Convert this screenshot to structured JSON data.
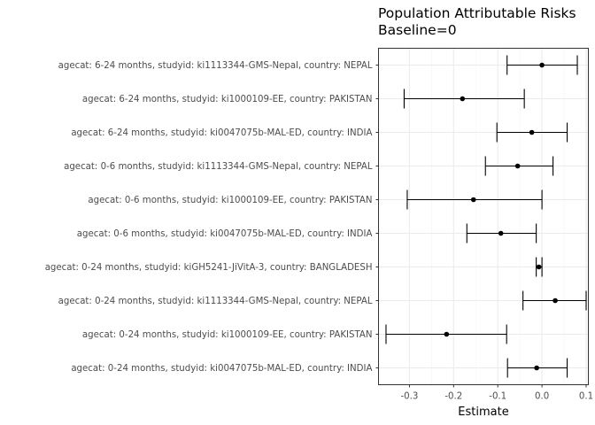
{
  "chart_data": {
    "type": "forest",
    "title": "Population Attributable Risks",
    "subtitle": "Baseline=0",
    "xlabel": "Estimate",
    "ylabel": "",
    "xlim": [
      -0.37,
      0.105
    ],
    "xticks": [
      -0.3,
      -0.2,
      -0.1,
      0.0,
      0.1
    ],
    "xtick_labels": [
      "-0.3",
      "-0.2",
      "-0.1",
      "0.0",
      "0.1"
    ],
    "grid": true,
    "categories": [
      "agecat: 6-24 months, studyid: ki1113344-GMS-Nepal, country: NEPAL",
      "agecat: 6-24 months, studyid: ki1000109-EE, country: PAKISTAN",
      "agecat: 6-24 months, studyid: ki0047075b-MAL-ED, country: INDIA",
      "agecat: 0-6 months, studyid: ki1113344-GMS-Nepal, country: NEPAL",
      "agecat: 0-6 months, studyid: ki1000109-EE, country: PAKISTAN",
      "agecat: 0-6 months, studyid: ki0047075b-MAL-ED, country: INDIA",
      "agecat: 0-24 months, studyid: kiGH5241-JiVitA-3, country: BANGLADESH",
      "agecat: 0-24 months, studyid: ki1113344-GMS-Nepal, country: NEPAL",
      "agecat: 0-24 months, studyid: ki1000109-EE, country: PAKISTAN",
      "agecat: 0-24 months, studyid: ki0047075b-MAL-ED, country: INDIA"
    ],
    "estimates": [
      0.0,
      -0.18,
      -0.023,
      -0.055,
      -0.155,
      -0.093,
      -0.007,
      0.03,
      -0.216,
      -0.012
    ],
    "lower": [
      -0.079,
      -0.312,
      -0.102,
      -0.128,
      -0.305,
      -0.17,
      -0.013,
      -0.043,
      -0.353,
      -0.078
    ],
    "upper": [
      0.08,
      -0.04,
      0.057,
      0.025,
      0.0,
      -0.013,
      0.0,
      0.1,
      -0.08,
      0.057
    ],
    "colors": {
      "point": "#000000",
      "errorbar": "#000000",
      "grid_major": "#ebebeb",
      "grid_minor": "#f4f4f4",
      "panel_border": "#333333",
      "tick_text": "#4d4d4d"
    }
  }
}
